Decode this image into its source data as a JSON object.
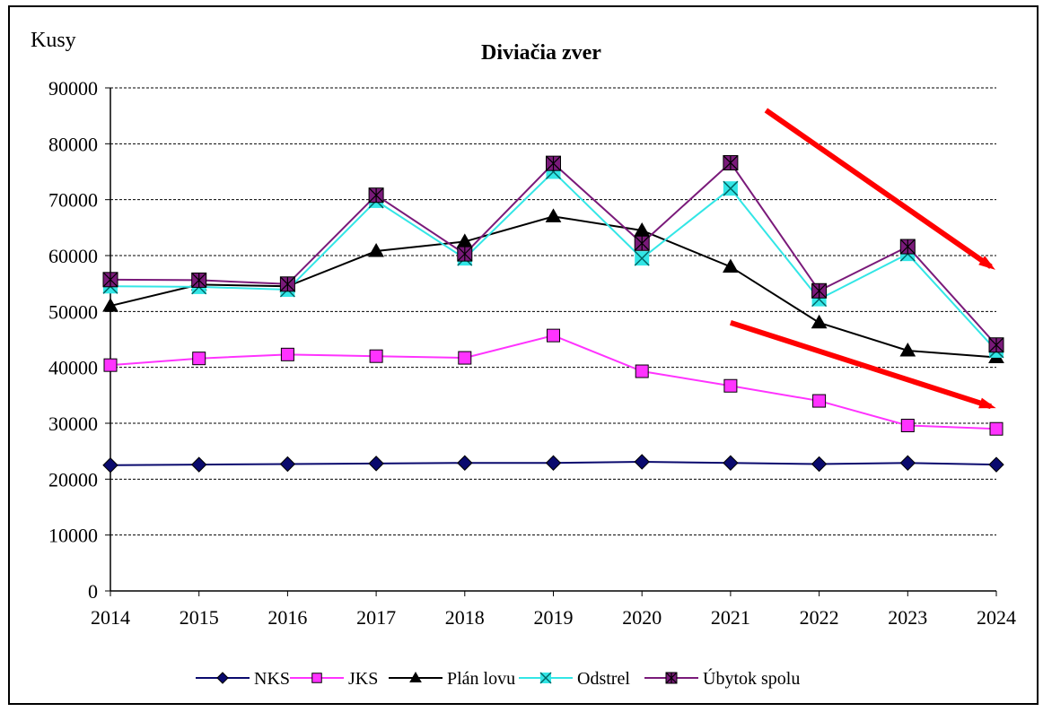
{
  "chart_data": {
    "type": "line",
    "title": "Diviačia zver",
    "ylabel": "Kusy",
    "xlabel": "",
    "ylim": [
      0,
      90000
    ],
    "yticks": [
      0,
      10000,
      20000,
      30000,
      40000,
      50000,
      60000,
      70000,
      80000,
      90000
    ],
    "grid": "horizontal dashed",
    "legend_position": "bottom",
    "categories": [
      "2014",
      "2015",
      "2016",
      "2017",
      "2018",
      "2019",
      "2020",
      "2021",
      "2022",
      "2023",
      "2024"
    ],
    "series": [
      {
        "name": "NKS",
        "marker": "diamond",
        "color": "#0a0a6e",
        "values": [
          22500,
          22600,
          22700,
          22800,
          22900,
          22900,
          23100,
          22900,
          22700,
          22900,
          22600
        ]
      },
      {
        "name": "JKS",
        "marker": "square",
        "color": "#ff33ff",
        "values": [
          40400,
          41600,
          42300,
          42000,
          41700,
          45700,
          39300,
          36700,
          34000,
          29600,
          29000
        ]
      },
      {
        "name": "Plán lovu",
        "marker": "triangle",
        "color": "#000000",
        "values": [
          51000,
          54800,
          54500,
          60800,
          62500,
          67000,
          64500,
          58000,
          48000,
          43000,
          41800
        ]
      },
      {
        "name": "Odstrel",
        "marker": "x",
        "color": "#33e6e6",
        "values": [
          54500,
          54400,
          53900,
          69800,
          59500,
          75000,
          59500,
          72000,
          52200,
          60300,
          43000
        ]
      },
      {
        "name": "Úbytok spolu",
        "marker": "starsquare",
        "color": "#7a1a7a",
        "values": [
          55700,
          55600,
          54900,
          70800,
          60300,
          76500,
          62200,
          76600,
          53700,
          61600,
          44000
        ]
      }
    ],
    "annotations": [
      {
        "type": "arrow",
        "color": "#ff0000",
        "from": [
          "2021.4",
          86000
        ],
        "to": [
          "2024",
          58000
        ]
      },
      {
        "type": "arrow",
        "color": "#ff0000",
        "from": [
          "2021",
          48000
        ],
        "to": [
          "2024",
          33000
        ]
      }
    ]
  }
}
